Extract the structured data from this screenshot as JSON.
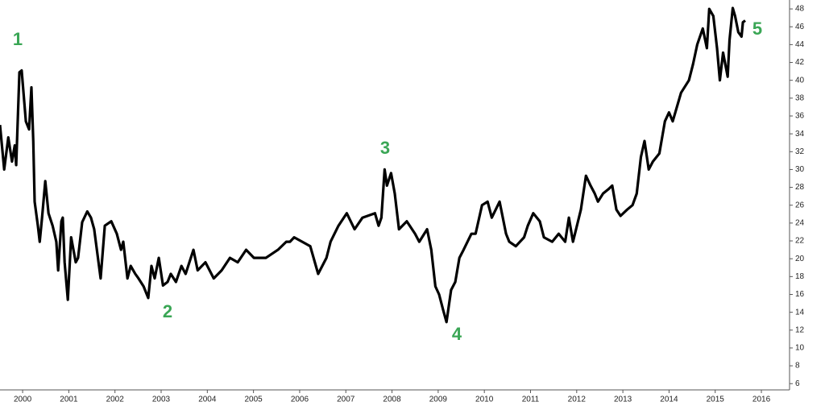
{
  "chart_data": {
    "type": "line",
    "annotations": [
      "1",
      "2",
      "3",
      "4",
      "5"
    ],
    "annotation_color": "#3aa655",
    "xlim": [
      1999.51,
      2016.61
    ],
    "xticks": [
      2000,
      2001,
      2002,
      2003,
      2004,
      2005,
      2006,
      2007,
      2008,
      2009,
      2010,
      2011,
      2012,
      2013,
      2014,
      2015,
      2016
    ],
    "ylim": [
      5.3,
      49
    ],
    "yticks": [
      6,
      8,
      10,
      12,
      14,
      16,
      18,
      20,
      22,
      24,
      26,
      28,
      30,
      32,
      34,
      36,
      38,
      40,
      42,
      44,
      46,
      48
    ],
    "grid": false,
    "series": [
      {
        "color": "#000000",
        "x": [
          1999.51,
          1999.6,
          1999.69,
          1999.77,
          1999.83,
          1999.86,
          1999.93,
          1999.98,
          2000.07,
          2000.14,
          2000.19,
          2000.23,
          2000.26,
          2000.33,
          2000.37,
          2000.42,
          2000.49,
          2000.56,
          2000.65,
          2000.73,
          2000.77,
          2000.84,
          2000.87,
          2000.91,
          2000.98,
          2001.05,
          2001.15,
          2001.2,
          2001.29,
          2001.4,
          2001.48,
          2001.55,
          2001.69,
          2001.78,
          2001.92,
          2002.04,
          2002.13,
          2002.18,
          2002.27,
          2002.34,
          2002.44,
          2002.51,
          2002.62,
          2002.72,
          2002.79,
          2002.86,
          2002.95,
          2003.04,
          2003.14,
          2003.21,
          2003.32,
          2003.44,
          2003.53,
          2003.7,
          2003.79,
          2003.96,
          2004.14,
          2004.31,
          2004.49,
          2004.66,
          2004.84,
          2005.01,
          2005.27,
          2005.53,
          2005.71,
          2005.79,
          2005.88,
          2006.23,
          2006.4,
          2006.58,
          2006.67,
          2006.84,
          2007.02,
          2007.19,
          2007.36,
          2007.63,
          2007.71,
          2007.77,
          2007.84,
          2007.89,
          2007.98,
          2008.06,
          2008.15,
          2008.32,
          2008.5,
          2008.59,
          2008.76,
          2008.85,
          2008.94,
          2009.02,
          2009.11,
          2009.18,
          2009.28,
          2009.37,
          2009.46,
          2009.55,
          2009.72,
          2009.81,
          2009.95,
          2010.07,
          2010.16,
          2010.33,
          2010.47,
          2010.54,
          2010.68,
          2010.86,
          2010.94,
          2011.06,
          2011.2,
          2011.29,
          2011.47,
          2011.61,
          2011.75,
          2011.83,
          2011.92,
          2012.09,
          2012.2,
          2012.3,
          2012.39,
          2012.46,
          2012.57,
          2012.69,
          2012.77,
          2012.86,
          2012.95,
          2013.09,
          2013.21,
          2013.3,
          2013.39,
          2013.47,
          2013.56,
          2013.65,
          2013.79,
          2013.91,
          2014.0,
          2014.08,
          2014.26,
          2014.43,
          2014.52,
          2014.61,
          2014.73,
          2014.82,
          2014.87,
          2014.96,
          2015.04,
          2015.1,
          2015.17,
          2015.27,
          2015.31,
          2015.38,
          2015.43,
          2015.5,
          2015.57,
          2015.6,
          2015.65
        ],
        "values": [
          35.0,
          30.0,
          33.6,
          30.9,
          32.7,
          30.5,
          40.9,
          41.1,
          35.4,
          34.5,
          39.2,
          33.2,
          26.4,
          23.7,
          21.9,
          24.6,
          28.7,
          25.1,
          23.7,
          21.9,
          18.7,
          24.2,
          24.6,
          19.6,
          15.4,
          22.4,
          19.6,
          20.1,
          24.1,
          25.3,
          24.6,
          23.3,
          17.8,
          23.7,
          24.2,
          22.8,
          21.0,
          21.9,
          17.8,
          19.2,
          18.3,
          17.8,
          16.9,
          15.6,
          19.2,
          17.8,
          20.1,
          17.0,
          17.4,
          18.3,
          17.4,
          19.2,
          18.3,
          21.0,
          18.7,
          19.6,
          17.8,
          18.7,
          20.1,
          19.6,
          21.0,
          20.1,
          20.1,
          21.0,
          21.9,
          21.9,
          22.4,
          21.4,
          18.3,
          20.1,
          21.9,
          23.7,
          25.1,
          23.3,
          24.6,
          25.1,
          23.7,
          24.6,
          30.0,
          28.2,
          29.6,
          27.3,
          23.3,
          24.2,
          22.8,
          21.9,
          23.3,
          21.0,
          16.9,
          16.0,
          14.2,
          12.9,
          16.5,
          17.4,
          20.1,
          21.0,
          22.8,
          22.8,
          26.0,
          26.4,
          24.6,
          26.4,
          22.8,
          21.9,
          21.4,
          22.4,
          23.7,
          25.1,
          24.2,
          22.4,
          21.9,
          22.8,
          21.9,
          24.6,
          21.9,
          25.5,
          29.3,
          28.2,
          27.3,
          26.4,
          27.3,
          27.8,
          28.2,
          25.5,
          24.8,
          25.5,
          26.0,
          27.3,
          31.4,
          33.2,
          30.0,
          30.9,
          31.8,
          35.4,
          36.4,
          35.4,
          38.6,
          40.0,
          41.8,
          44.0,
          45.8,
          43.6,
          48.0,
          47.2,
          43.6,
          40.0,
          43.1,
          40.4,
          44.5,
          48.1,
          47.2,
          45.4,
          44.9,
          46.5,
          46.7
        ]
      }
    ]
  }
}
